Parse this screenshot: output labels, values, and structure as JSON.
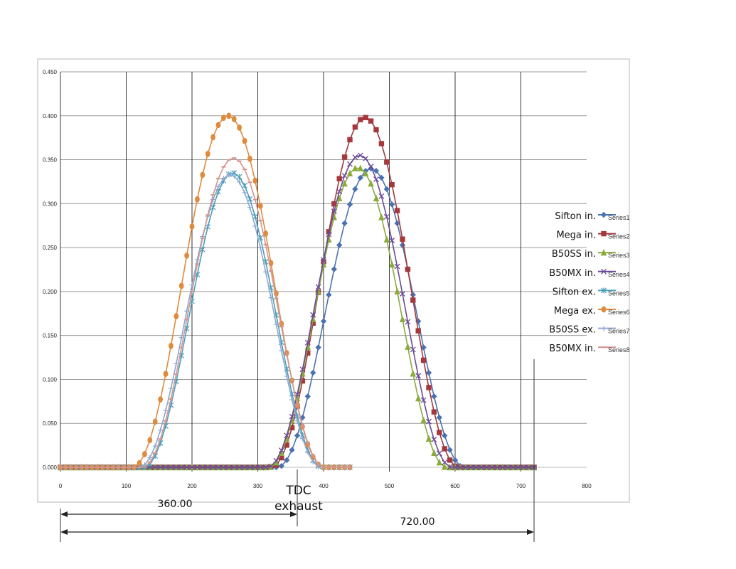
{
  "chart_data": {
    "type": "scatter",
    "title": "",
    "xlabel": "",
    "ylabel": "",
    "xlim": [
      0,
      800
    ],
    "ylim": [
      0,
      0.45
    ],
    "grid": true,
    "legend_position": "right",
    "x_ticks": [
      "0",
      "100",
      "200",
      "300",
      "400",
      "500",
      "600",
      "700",
      "800"
    ],
    "y_ticks": [
      "0.000",
      "0.050",
      "0.100",
      "0.150",
      "0.200",
      "0.250",
      "0.300",
      "0.350",
      "0.400",
      "0.450"
    ],
    "series": [
      {
        "name": "Series1",
        "label": "Sifton in.",
        "color": "#4a72b0",
        "marker": "diamond",
        "center": 472,
        "peak": 0.34,
        "width": 142,
        "x_start": 0,
        "x_end": 720
      },
      {
        "name": "Series2",
        "label": "Mega in.",
        "color": "#a5383c",
        "marker": "square",
        "center": 463,
        "peak": 0.398,
        "width": 142,
        "x_start": 0,
        "x_end": 720
      },
      {
        "name": "Series3",
        "label": "B50SS in.",
        "color": "#8aab3c",
        "marker": "triangle",
        "center": 452,
        "peak": 0.341,
        "width": 135,
        "x_start": 0,
        "x_end": 720
      },
      {
        "name": "Series4",
        "label": "B50MX in.",
        "color": "#6a4a98",
        "marker": "x",
        "center": 455,
        "peak": 0.355,
        "width": 140,
        "x_start": 0,
        "x_end": 720
      },
      {
        "name": "Series5",
        "label": "Sifton ex.",
        "color": "#4ba0b8",
        "marker": "asterisk",
        "center": 262,
        "peak": 0.335,
        "width": 135,
        "x_start": 0,
        "x_end": 440
      },
      {
        "name": "Series6",
        "label": "Mega ex.",
        "color": "#e08a3c",
        "marker": "circle",
        "center": 255,
        "peak": 0.4,
        "width": 145,
        "x_start": 0,
        "x_end": 440
      },
      {
        "name": "Series7",
        "label": "B50SS ex.",
        "color": "#8fa8d2",
        "marker": "plus",
        "center": 258,
        "peak": 0.333,
        "width": 138,
        "x_start": 0,
        "x_end": 440
      },
      {
        "name": "Series8",
        "label": "B50MX in.",
        "color": "#d4948e",
        "marker": "dash",
        "center": 263,
        "peak": 0.352,
        "width": 138,
        "x_start": 0,
        "x_end": 440
      }
    ],
    "annotations": [
      {
        "text": "360.00",
        "x_from": 0,
        "x_to": 400
      },
      {
        "text": "720.00",
        "x_from": 0,
        "x_to": 800
      },
      {
        "text": "TDC",
        "at_x": 400
      },
      {
        "text": "exhaust",
        "at_x": 400
      }
    ]
  }
}
